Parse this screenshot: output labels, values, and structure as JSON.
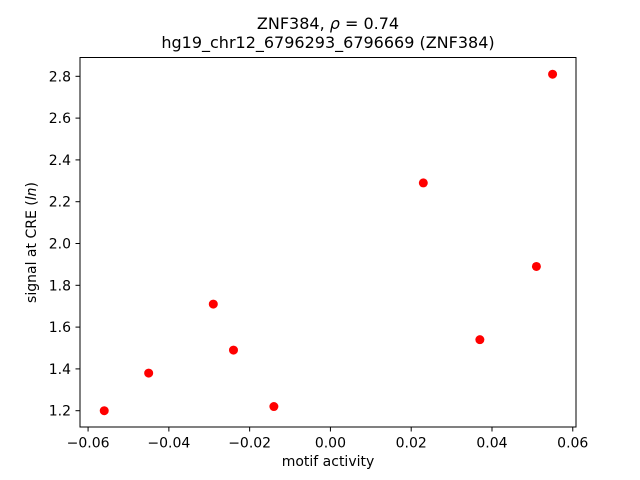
{
  "figure": {
    "background": "#ffffff",
    "text_color": "#000000",
    "spine_color": "#000000"
  },
  "chart_data": {
    "type": "scatter",
    "title": {
      "line1_prefix": "ZNF384, ",
      "line1_rho": "ρ",
      "line1_suffix": " = 0.74",
      "line2": "hg19_chr12_6796293_6796669 (ZNF384)"
    },
    "xlabel": "motif activity",
    "ylabel": {
      "prefix": "signal at CRE (",
      "italic": "ln",
      "suffix": ")"
    },
    "series": [
      {
        "name": "CRE signal vs motif activity",
        "color": "#ff0000",
        "points": [
          {
            "x": -0.056,
            "y": 1.2
          },
          {
            "x": -0.045,
            "y": 1.38
          },
          {
            "x": -0.029,
            "y": 1.71
          },
          {
            "x": -0.024,
            "y": 1.49
          },
          {
            "x": -0.014,
            "y": 1.22
          },
          {
            "x": 0.023,
            "y": 2.29
          },
          {
            "x": 0.037,
            "y": 1.54
          },
          {
            "x": 0.051,
            "y": 1.89
          },
          {
            "x": 0.055,
            "y": 2.81
          }
        ]
      }
    ],
    "xlim": [
      -0.062,
      0.0608
    ],
    "ylim": [
      1.122,
      2.89
    ],
    "xticks": {
      "values": [
        -0.06,
        -0.04,
        -0.02,
        0.0,
        0.02,
        0.04,
        0.06
      ],
      "labels": [
        "−0.06",
        "−0.04",
        "−0.02",
        "0.00",
        "0.02",
        "0.04",
        "0.06"
      ]
    },
    "yticks": {
      "values": [
        1.2,
        1.4,
        1.6,
        1.8,
        2.0,
        2.2,
        2.4,
        2.6,
        2.8
      ],
      "labels": [
        "1.2",
        "1.4",
        "1.6",
        "1.8",
        "2.0",
        "2.2",
        "2.4",
        "2.6",
        "2.8"
      ]
    },
    "grid": false,
    "legend": "none"
  }
}
